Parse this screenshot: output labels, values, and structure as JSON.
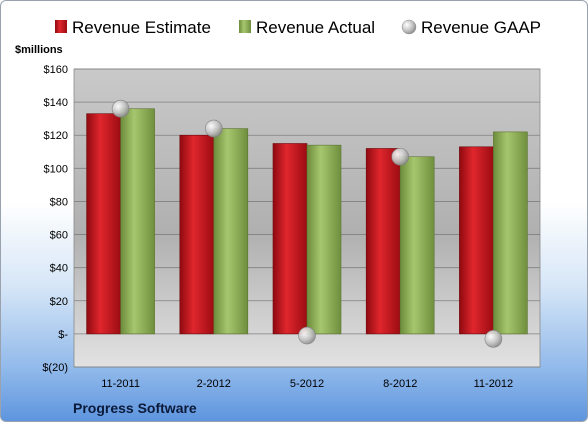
{
  "chart_data": {
    "type": "bar",
    "categories": [
      "11-2011",
      "2-2012",
      "5-2012",
      "8-2012",
      "11-2012"
    ],
    "series": [
      {
        "name": "Revenue Estimate",
        "values": [
          133,
          120,
          115,
          112,
          113
        ],
        "color": "#c8141c",
        "kind": "bar"
      },
      {
        "name": "Revenue Actual",
        "values": [
          136,
          124,
          114,
          107,
          122
        ],
        "color": "#8fb25a",
        "kind": "bar"
      },
      {
        "name": "Revenue GAAP",
        "values": [
          136,
          124,
          -1,
          107,
          -3
        ],
        "color": "#c8c8c8",
        "kind": "marker"
      }
    ],
    "ylabel": "$millions",
    "ylim": [
      -20,
      160
    ],
    "yticks": [
      -20,
      0,
      20,
      40,
      60,
      80,
      100,
      120,
      140,
      160
    ],
    "ytick_labels": [
      "$(20)",
      "$-",
      "$20",
      "$40",
      "$60",
      "$80",
      "$100",
      "$120",
      "$140",
      "$160"
    ],
    "grid": true,
    "legend_position": "top",
    "company": "Progress Software"
  }
}
